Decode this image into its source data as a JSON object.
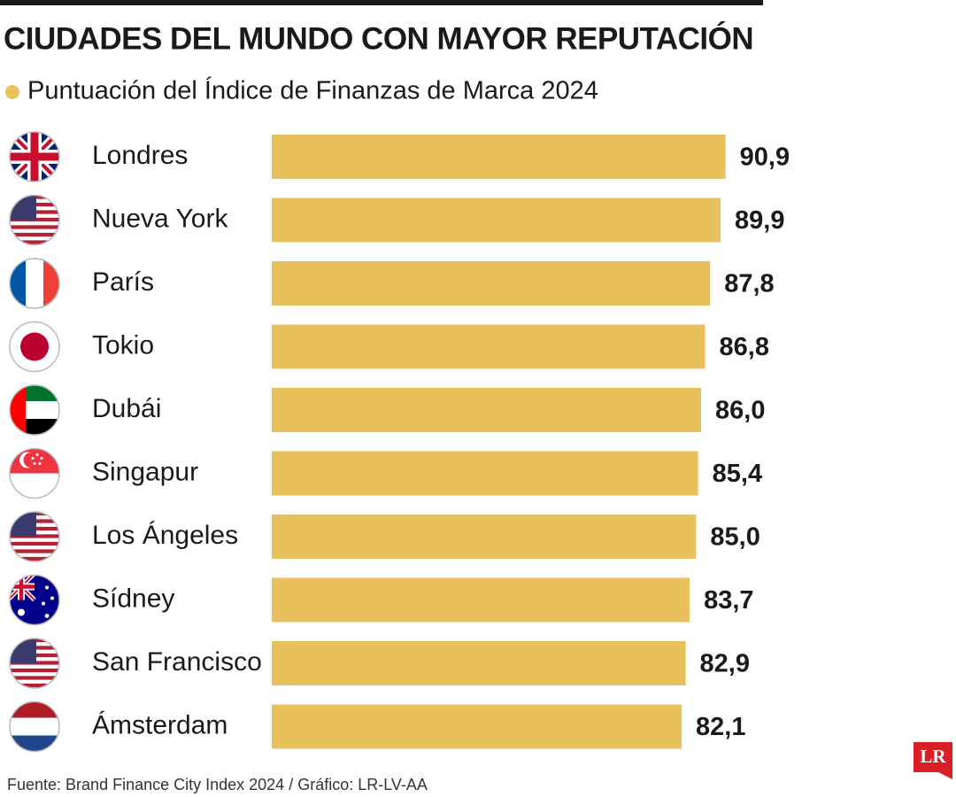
{
  "chart_data": {
    "type": "bar",
    "orientation": "horizontal",
    "title": "CIUDADES DEL MUNDO CON MAYOR REPUTACIÓN",
    "subtitle": "Puntuación del Índice de Finanzas de Marca 2024",
    "categories": [
      "Londres",
      "Nueva York",
      "París",
      "Tokio",
      "Dubái",
      "Singapur",
      "Los Ángeles",
      "Sídney",
      "San Francisco",
      "Ámsterdam"
    ],
    "values": [
      90.9,
      89.9,
      87.8,
      86.8,
      86.0,
      85.4,
      85.0,
      83.7,
      82.9,
      82.1
    ],
    "value_labels": [
      "90,9",
      "89,9",
      "87,8",
      "86,8",
      "86,0",
      "85,4",
      "85,0",
      "83,7",
      "82,9",
      "82,1"
    ],
    "color": "#e8c15d",
    "xlim": [
      0,
      100
    ],
    "source": "Fuente: Brand Finance City Index 2024 / Gráfico: LR-LV-AA",
    "logo": "LR"
  }
}
